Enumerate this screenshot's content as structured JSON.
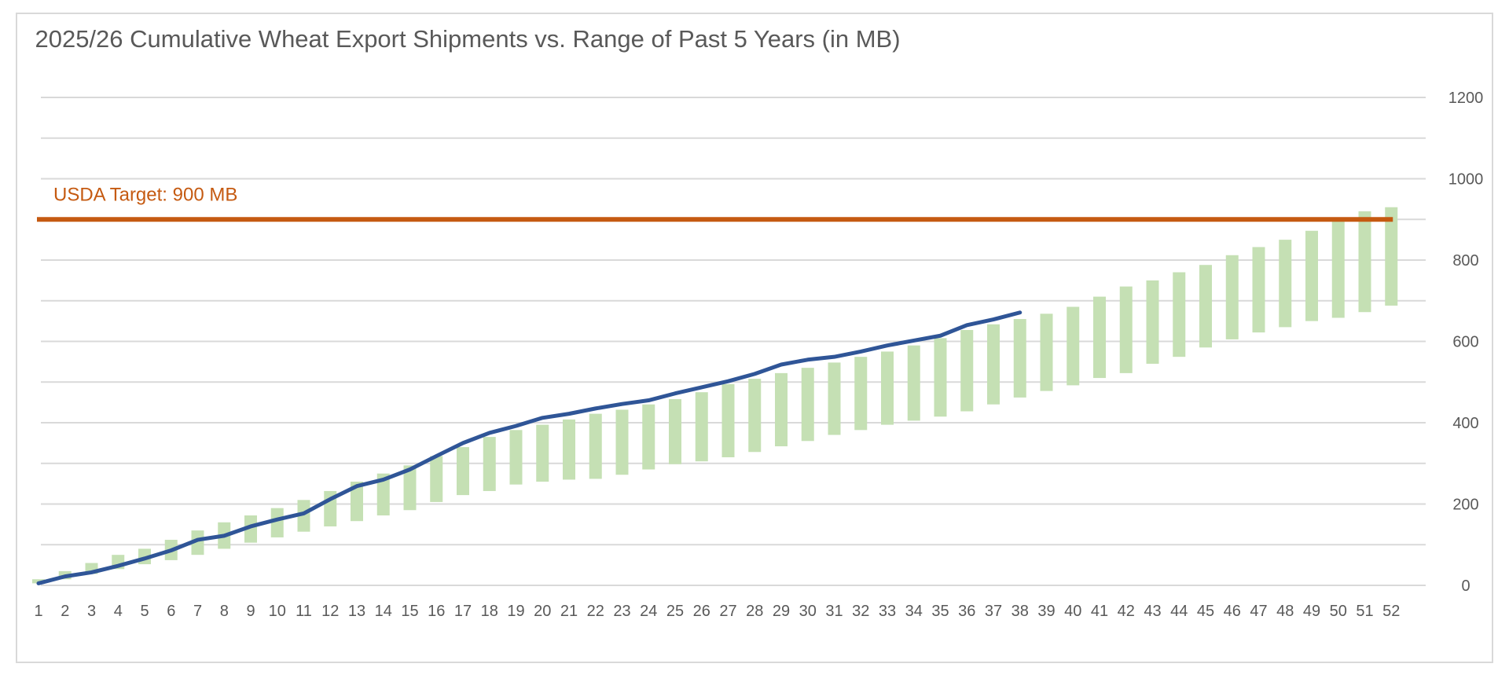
{
  "chart_data": {
    "type": "line",
    "title": "2025/26 Cumulative Wheat Export Shipments vs. Range of Past 5 Years (in MB)",
    "xlabel": "",
    "ylabel": "",
    "ylim": [
      0,
      1200
    ],
    "y_ticks": [
      0,
      200,
      400,
      600,
      800,
      1000,
      1200
    ],
    "grid_step": 100,
    "grid": true,
    "x_categories": [
      "1",
      "2",
      "3",
      "4",
      "5",
      "6",
      "7",
      "8",
      "9",
      "10",
      "11",
      "12",
      "13",
      "14",
      "15",
      "16",
      "17",
      "18",
      "19",
      "20",
      "21",
      "22",
      "23",
      "24",
      "25",
      "26",
      "27",
      "28",
      "29",
      "30",
      "31",
      "32",
      "33",
      "34",
      "35",
      "36",
      "37",
      "38",
      "39",
      "40",
      "41",
      "42",
      "43",
      "44",
      "45",
      "46",
      "47",
      "48",
      "49",
      "50",
      "51",
      "52"
    ],
    "range_series": {
      "name": "Range of Past 5 Years",
      "color": "#c5e0b4",
      "low": [
        5,
        15,
        28,
        40,
        52,
        62,
        75,
        90,
        105,
        118,
        132,
        145,
        158,
        172,
        185,
        205,
        222,
        232,
        248,
        255,
        260,
        262,
        272,
        285,
        298,
        305,
        315,
        328,
        342,
        355,
        370,
        382,
        395,
        405,
        415,
        428,
        445,
        462,
        478,
        492,
        510,
        522,
        545,
        562,
        585,
        605,
        622,
        635,
        650,
        658,
        672,
        688
      ],
      "high": [
        15,
        35,
        55,
        75,
        90,
        112,
        135,
        155,
        172,
        190,
        210,
        232,
        255,
        275,
        295,
        318,
        340,
        365,
        382,
        395,
        408,
        422,
        432,
        445,
        458,
        475,
        495,
        508,
        522,
        535,
        548,
        562,
        575,
        590,
        608,
        628,
        642,
        655,
        668,
        685,
        710,
        735,
        750,
        770,
        788,
        812,
        832,
        850,
        872,
        895,
        920,
        930
      ]
    },
    "line_series": {
      "name": "2025/26",
      "color": "#2f5597",
      "values": [
        5,
        22,
        32,
        48,
        66,
        86,
        112,
        122,
        145,
        162,
        177,
        212,
        244,
        260,
        285,
        318,
        350,
        375,
        392,
        412,
        422,
        435,
        446,
        455,
        472,
        487,
        502,
        520,
        543,
        555,
        562,
        575,
        590,
        602,
        614,
        640,
        654,
        671
      ]
    },
    "reference_line": {
      "label": "USDA Target: 900 MB",
      "value": 900,
      "color": "#c55a11"
    }
  }
}
